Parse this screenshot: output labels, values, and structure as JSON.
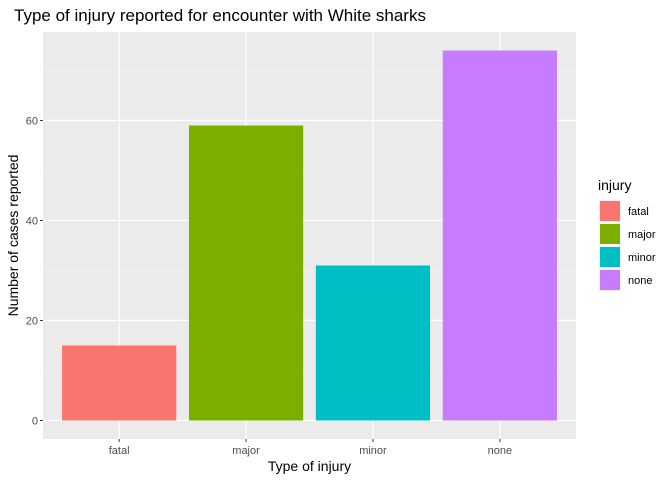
{
  "chart_data": {
    "type": "bar",
    "title": "Type of injury reported for encounter with White sharks",
    "xlabel": "Type of injury",
    "ylabel": "Number of cases reported",
    "categories": [
      "fatal",
      "major",
      "minor",
      "none"
    ],
    "values": [
      15,
      59,
      31,
      74
    ],
    "colors": [
      "#F8766D",
      "#7CAE00",
      "#00BFC4",
      "#C77CFF"
    ],
    "ylim": [
      -3.7,
      77.7
    ],
    "yticks": [
      0,
      20,
      40,
      60
    ],
    "grid": true,
    "legend": {
      "title": "injury",
      "position": "right",
      "entries": [
        "fatal",
        "major",
        "minor",
        "none"
      ]
    }
  }
}
